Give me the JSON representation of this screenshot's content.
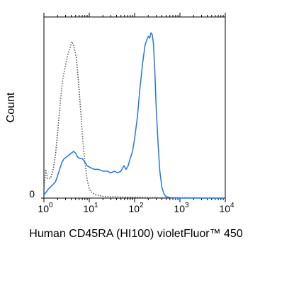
{
  "chart_data": {
    "type": "line",
    "xlabel": "Human CD45RA (HI100) violetFluor™ 450",
    "ylabel": "Count",
    "x_scale": "log",
    "xlim": [
      1,
      10000
    ],
    "ylim": [
      0,
      100
    ],
    "grid": false,
    "legend": "none",
    "y_ticks": [
      {
        "value": 0,
        "label": "0"
      }
    ],
    "x_ticks": [
      {
        "value": 1,
        "base": "10",
        "exp": "0"
      },
      {
        "value": 10,
        "base": "10",
        "exp": "1"
      },
      {
        "value": 100,
        "base": "10",
        "exp": "2"
      },
      {
        "value": 1000,
        "base": "10",
        "exp": "3"
      },
      {
        "value": 10000,
        "base": "10",
        "exp": "4"
      }
    ],
    "series": [
      {
        "style": "dotted",
        "color": "#555555",
        "x": [
          0.95,
          1.0,
          1.1,
          1.2,
          1.4,
          1.6,
          1.8,
          2.0,
          2.3,
          2.6,
          3.0,
          3.4,
          3.8,
          4.1,
          4.4,
          4.8,
          5.2,
          5.8,
          6.5,
          7.2,
          8.0,
          9.0,
          10.0,
          11.5,
          13.5,
          16,
          20,
          26,
          40,
          60,
          100,
          200,
          500,
          1000,
          10000
        ],
        "y": [
          0,
          4,
          16,
          11,
          11,
          16,
          24,
          36,
          54,
          66,
          74,
          80,
          84,
          87,
          86,
          82,
          78,
          64,
          48,
          32,
          20,
          10,
          5,
          3,
          2,
          1.5,
          1,
          0.8,
          0.7,
          0.5,
          0.5,
          0.3,
          0.2,
          0.2,
          0
        ]
      },
      {
        "style": "solid",
        "color": "#1f78e8",
        "x": [
          1.0,
          1.1,
          1.25,
          1.5,
          1.8,
          2.1,
          2.5,
          2.8,
          3.2,
          3.6,
          4.0,
          4.5,
          5.0,
          5.5,
          6.2,
          7.0,
          8.0,
          9.0,
          10.5,
          13,
          16,
          20,
          25,
          30,
          36,
          42,
          50,
          58,
          65,
          72,
          80,
          90,
          100,
          115,
          130,
          150,
          170,
          185,
          200,
          215,
          230,
          245,
          260,
          280,
          300,
          330,
          360,
          400,
          450,
          500,
          600,
          800,
          1000,
          2000,
          10000
        ],
        "y": [
          2,
          3,
          5,
          7,
          9,
          14,
          20,
          22,
          23,
          24,
          25,
          26,
          25,
          23,
          22,
          22,
          20,
          18,
          17,
          16,
          16,
          15,
          15,
          14,
          15,
          14,
          15,
          18,
          16,
          18,
          22,
          26,
          33,
          45,
          60,
          75,
          85,
          88,
          90,
          89,
          92,
          91,
          86,
          70,
          50,
          30,
          15,
          6,
          2,
          0.8,
          0.3,
          0.1,
          0,
          0,
          0
        ]
      }
    ]
  }
}
